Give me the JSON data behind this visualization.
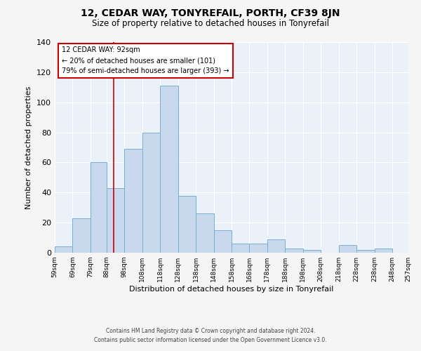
{
  "title": "12, CEDAR WAY, TONYREFAIL, PORTH, CF39 8JN",
  "subtitle": "Size of property relative to detached houses in Tonyrefail",
  "xlabel": "Distribution of detached houses by size in Tonyrefail",
  "ylabel": "Number of detached properties",
  "footer_line1": "Contains HM Land Registry data © Crown copyright and database right 2024.",
  "footer_line2": "Contains public sector information licensed under the Open Government Licence v3.0.",
  "bin_edges": [
    59,
    69,
    79,
    88,
    98,
    108,
    118,
    128,
    138,
    148,
    158,
    168,
    178,
    188,
    198,
    208,
    218,
    228,
    238,
    248,
    257
  ],
  "bar_heights": [
    4,
    23,
    60,
    43,
    69,
    80,
    111,
    38,
    26,
    15,
    6,
    6,
    9,
    3,
    2,
    0,
    5,
    2,
    3,
    0
  ],
  "bar_color": "#c9d9ed",
  "bar_edge_color": "#7aaed0",
  "property_size": 92,
  "red_line_x": 92,
  "annotation_title": "12 CEDAR WAY: 92sqm",
  "annotation_line2": "← 20% of detached houses are smaller (101)",
  "annotation_line3": "79% of semi-detached houses are larger (393) →",
  "annotation_box_color": "#ffffff",
  "annotation_box_edge": "#cc0000",
  "red_line_color": "#cc0000",
  "ylim": [
    0,
    140
  ],
  "yticks": [
    0,
    20,
    40,
    60,
    80,
    100,
    120,
    140
  ],
  "background_color": "#eaf1f8",
  "grid_color": "#ffffff",
  "tick_labels": [
    "59sqm",
    "69sqm",
    "79sqm",
    "88sqm",
    "98sqm",
    "108sqm",
    "118sqm",
    "128sqm",
    "138sqm",
    "148sqm",
    "158sqm",
    "168sqm",
    "178sqm",
    "188sqm",
    "198sqm",
    "208sqm",
    "218sqm",
    "228sqm",
    "238sqm",
    "248sqm",
    "257sqm"
  ],
  "fig_background": "#f5f5f5"
}
